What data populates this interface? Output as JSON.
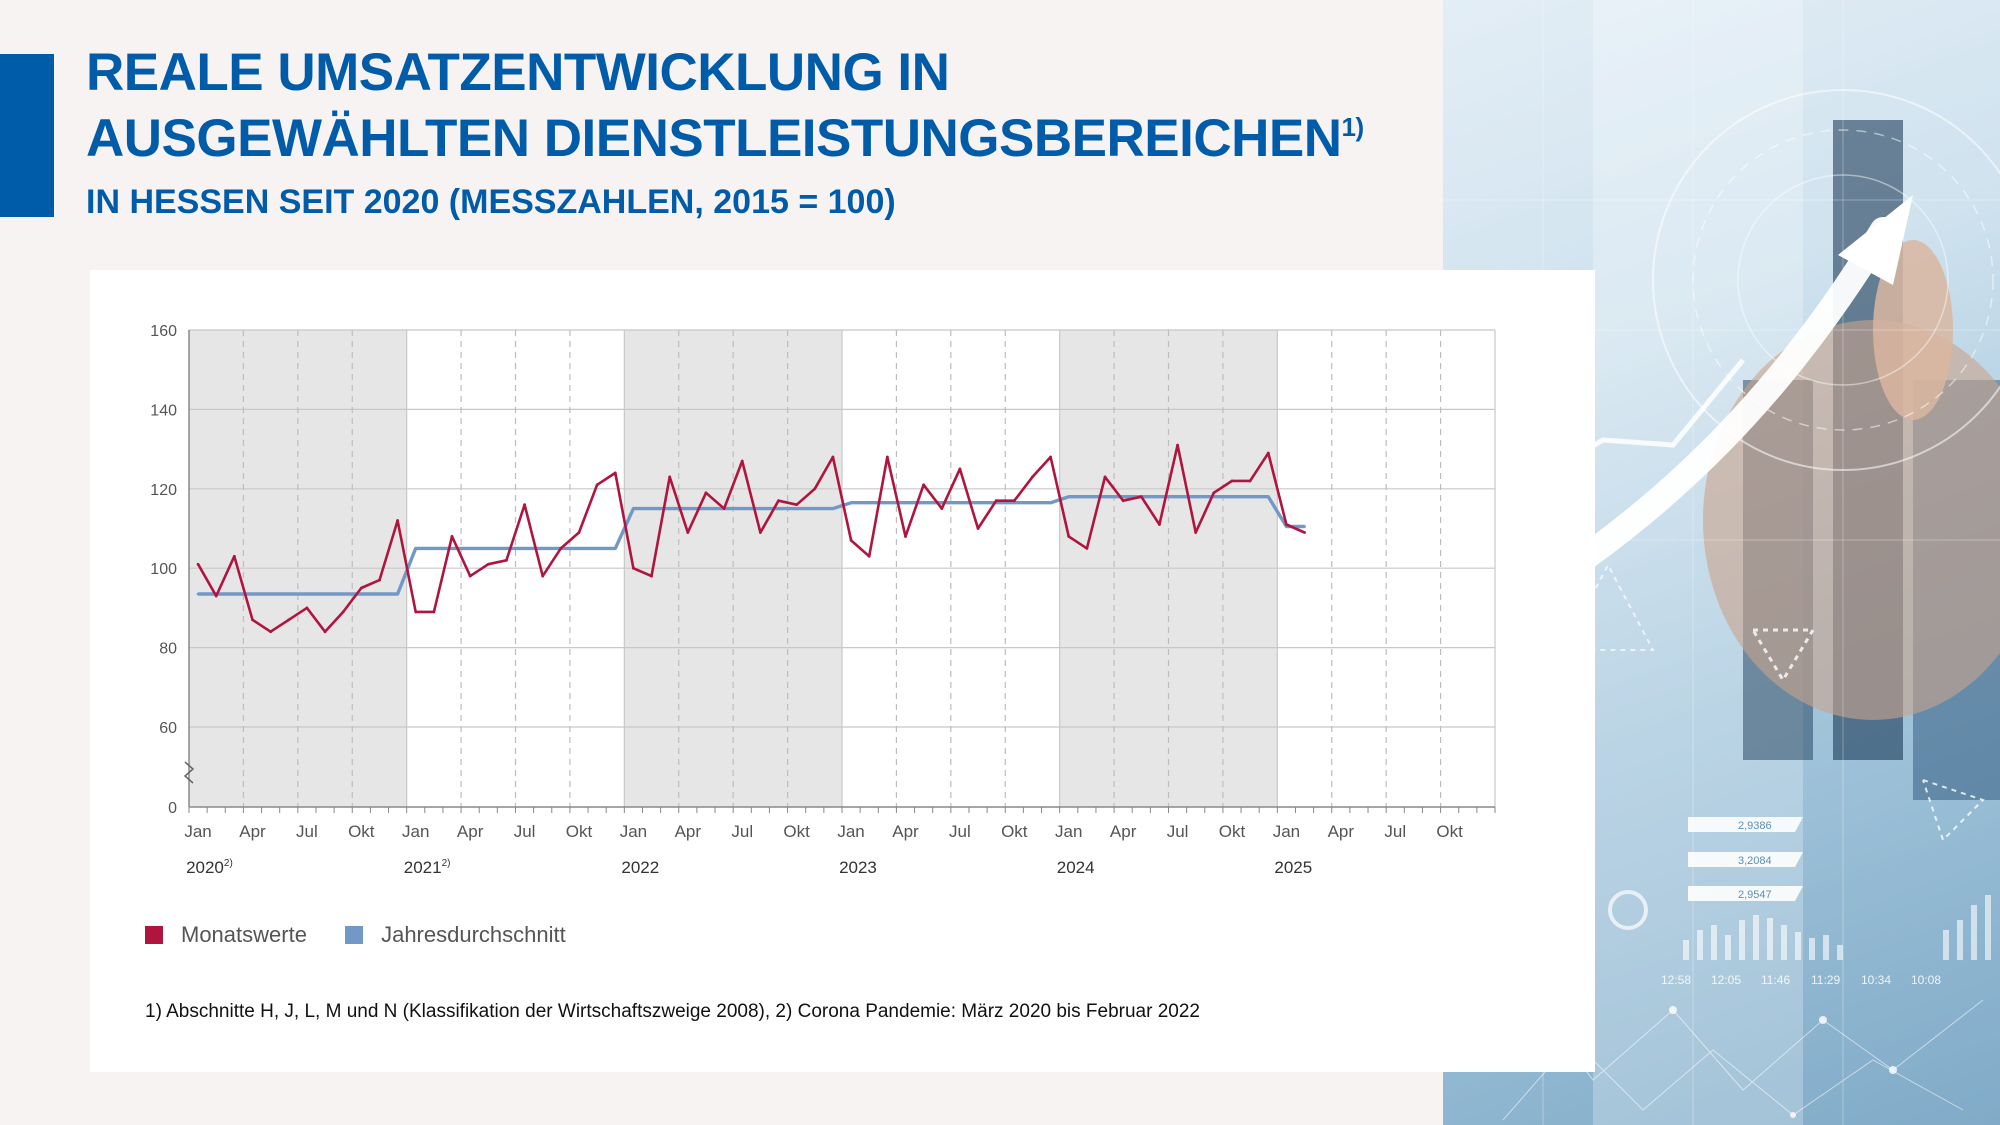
{
  "header": {
    "title_line1": "REALE UMSATZENTWICKLUNG IN",
    "title_line2": "AUSGEWÄHLTEN DIENSTLEISTUNGSBEREICHEN",
    "title_sup": "1)",
    "subtitle": "IN HESSEN SEIT 2020 (MESSZAHLEN, 2015 = 100)"
  },
  "footnote": "1) Abschnitte H, J, L, M und N (Klassifikation der Wirtschaftszweige 2008), 2) Corona Pandemie: März 2020 bis Februar 2022",
  "decor": {
    "photo_labels": [
      "2,9386",
      "3,2084",
      "2,9547"
    ],
    "time_labels": [
      "12:58",
      "12:05",
      "11:46",
      "11:29",
      "10:34",
      "10:08"
    ]
  },
  "colors": {
    "brand": "#005ca9",
    "monthly": "#b0153f",
    "annual": "#7299c6",
    "pandemic_shade": "#e6e6e6"
  },
  "chart_data": {
    "type": "line",
    "ylim": [
      0,
      160
    ],
    "y_ticks": [
      0,
      60,
      80,
      100,
      120,
      140,
      160
    ],
    "y_axis_break": "0–60",
    "month_labels": [
      "Jan",
      "Apr",
      "Jul",
      "Okt"
    ],
    "years": [
      {
        "label": "2020",
        "sup": "2)"
      },
      {
        "label": "2021",
        "sup": "2)"
      },
      {
        "label": "2022",
        "sup": ""
      },
      {
        "label": "2023",
        "sup": ""
      },
      {
        "label": "2024",
        "sup": ""
      },
      {
        "label": "2025",
        "sup": ""
      }
    ],
    "x_range_months": 72,
    "shaded_periods": [
      {
        "from": "2020-01",
        "to": "2021-01"
      },
      {
        "from": "2022-01",
        "to": "2023-01"
      },
      {
        "from": "2024-01",
        "to": "2025-01"
      }
    ],
    "legend_position": "bottom-left",
    "series": [
      {
        "name": "Monatswerte",
        "color": "#b0153f",
        "start": "2020-01",
        "values": [
          101,
          93,
          103,
          87,
          84,
          87,
          90,
          84,
          89,
          95,
          97,
          112,
          89,
          89,
          108,
          98,
          101,
          102,
          116,
          98,
          105,
          109,
          121,
          124,
          100,
          98,
          123,
          109,
          119,
          115,
          127,
          109,
          117,
          116,
          120,
          128,
          107,
          103,
          128,
          108,
          121,
          115,
          125,
          110,
          117,
          117,
          123,
          128,
          108,
          105,
          123,
          117,
          118,
          111,
          131,
          109,
          119,
          122,
          122,
          129,
          111,
          109
        ]
      },
      {
        "name": "Jahresdurchschnitt",
        "color": "#7299c6",
        "start": "2020-01",
        "values": [
          93.5,
          93.5,
          93.5,
          93.5,
          93.5,
          93.5,
          93.5,
          93.5,
          93.5,
          93.5,
          93.5,
          93.5,
          105,
          105,
          105,
          105,
          105,
          105,
          105,
          105,
          105,
          105,
          105,
          105,
          115,
          115,
          115,
          115,
          115,
          115,
          115,
          115,
          115,
          115,
          115,
          115,
          116.5,
          116.5,
          116.5,
          116.5,
          116.5,
          116.5,
          116.5,
          116.5,
          116.5,
          116.5,
          116.5,
          116.5,
          118,
          118,
          118,
          118,
          118,
          118,
          118,
          118,
          118,
          118,
          118,
          118,
          110.5,
          110.5
        ]
      }
    ]
  }
}
